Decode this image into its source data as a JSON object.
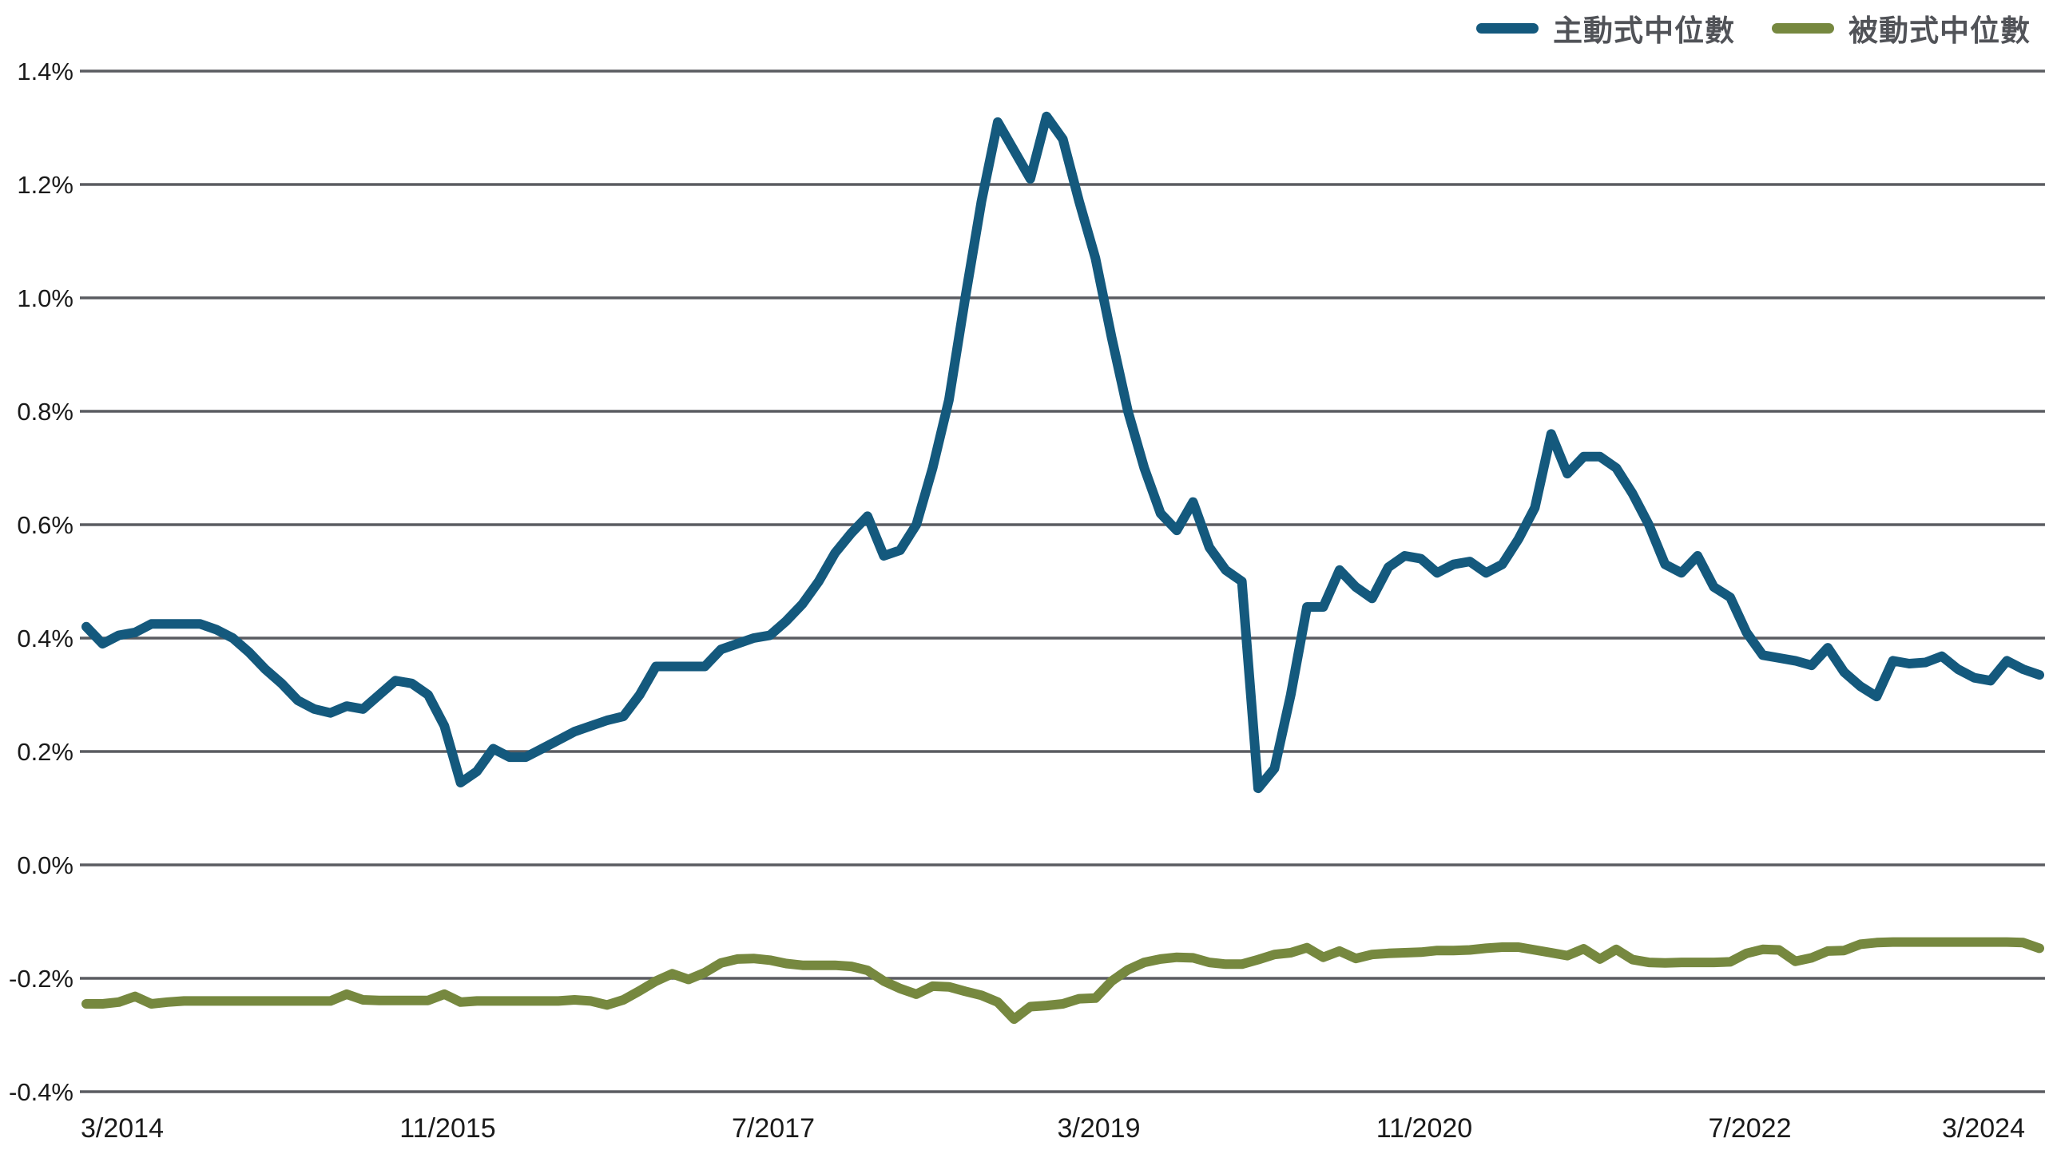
{
  "legend": {
    "active_label": "主動式中位數",
    "passive_label": "被動式中位數"
  },
  "colors": {
    "active": "#14597D",
    "passive": "#76883F",
    "gridline": "#5A5C61",
    "tick_text": "#1A1A1A",
    "legend_text": "#515358",
    "background": "#FFFFFF"
  },
  "chart_data": {
    "type": "line",
    "title": "",
    "xlabel": "",
    "ylabel": "",
    "grid": true,
    "legend_position": "top-right",
    "ylim": [
      -0.4,
      1.4
    ],
    "y_tick_labels": [
      "1.4%",
      "1.2%",
      "1.0%",
      "0.8%",
      "0.6%",
      "0.4%",
      "0.2%",
      "0.0%",
      "-0.2%",
      "-0.4%"
    ],
    "y_tick_values": [
      1.4,
      1.2,
      1.0,
      0.8,
      0.6,
      0.4,
      0.2,
      0.0,
      -0.2,
      -0.4
    ],
    "x_tick_labels": [
      "3/2014",
      "11/2015",
      "7/2017",
      "3/2019",
      "11/2020",
      "7/2022",
      "3/2024"
    ],
    "x_tick_month_indices": [
      0,
      20,
      40,
      60,
      80,
      100,
      120
    ],
    "unit": "percent",
    "x": [
      "3/2014",
      "4/2014",
      "5/2014",
      "6/2014",
      "7/2014",
      "8/2014",
      "9/2014",
      "10/2014",
      "11/2014",
      "12/2014",
      "1/2015",
      "2/2015",
      "3/2015",
      "4/2015",
      "5/2015",
      "6/2015",
      "7/2015",
      "8/2015",
      "9/2015",
      "10/2015",
      "11/2015",
      "12/2015",
      "1/2016",
      "2/2016",
      "3/2016",
      "4/2016",
      "5/2016",
      "6/2016",
      "7/2016",
      "8/2016",
      "9/2016",
      "10/2016",
      "11/2016",
      "12/2016",
      "1/2017",
      "2/2017",
      "3/2017",
      "4/2017",
      "5/2017",
      "6/2017",
      "7/2017",
      "8/2017",
      "9/2017",
      "10/2017",
      "11/2017",
      "12/2017",
      "1/2018",
      "2/2018",
      "3/2018",
      "4/2018",
      "5/2018",
      "6/2018",
      "7/2018",
      "8/2018",
      "9/2018",
      "10/2018",
      "11/2018",
      "12/2018",
      "1/2019",
      "2/2019",
      "3/2019",
      "4/2019",
      "5/2019",
      "6/2019",
      "7/2019",
      "8/2019",
      "9/2019",
      "10/2019",
      "11/2019",
      "12/2019",
      "1/2020",
      "2/2020",
      "3/2020",
      "4/2020",
      "5/2020",
      "6/2020",
      "7/2020",
      "8/2020",
      "9/2020",
      "10/2020",
      "11/2020",
      "12/2020",
      "1/2021",
      "2/2021",
      "3/2021",
      "4/2021",
      "5/2021",
      "6/2021",
      "7/2021",
      "8/2021",
      "9/2021",
      "10/2021",
      "11/2021",
      "12/2021",
      "1/2022",
      "2/2022",
      "3/2022",
      "4/2022",
      "5/2022",
      "6/2022",
      "7/2022",
      "8/2022",
      "9/2022",
      "10/2022",
      "11/2022",
      "12/2022",
      "1/2023",
      "2/2023",
      "3/2023",
      "4/2023",
      "5/2023",
      "6/2023",
      "7/2023",
      "8/2023",
      "9/2023",
      "10/2023",
      "11/2023",
      "12/2023",
      "1/2024",
      "2/2024",
      "3/2024"
    ],
    "series": [
      {
        "name": "主動式中位數",
        "color": "#14597D",
        "values": [
          0.42,
          0.39,
          0.405,
          0.41,
          0.425,
          0.425,
          0.425,
          0.425,
          0.415,
          0.4,
          0.375,
          0.345,
          0.32,
          0.29,
          0.275,
          0.268,
          0.28,
          0.275,
          0.3,
          0.325,
          0.32,
          0.3,
          0.245,
          0.145,
          0.165,
          0.205,
          0.19,
          0.19,
          0.205,
          0.22,
          0.235,
          0.245,
          0.255,
          0.262,
          0.3,
          0.35,
          0.35,
          0.35,
          0.35,
          0.38,
          0.39,
          0.4,
          0.405,
          0.43,
          0.46,
          0.5,
          0.55,
          0.585,
          0.615,
          0.545,
          0.555,
          0.6,
          0.7,
          0.82,
          1.0,
          1.17,
          1.31,
          1.26,
          1.21,
          1.32,
          1.28,
          1.17,
          1.07,
          0.93,
          0.8,
          0.7,
          0.62,
          0.59,
          0.64,
          0.56,
          0.52,
          0.5,
          0.135,
          0.17,
          0.3,
          0.455,
          0.455,
          0.52,
          0.49,
          0.47,
          0.525,
          0.545,
          0.54,
          0.515,
          0.53,
          0.535,
          0.515,
          0.53,
          0.575,
          0.63,
          0.76,
          0.69,
          0.72,
          0.72,
          0.7,
          0.655,
          0.6,
          0.53,
          0.515,
          0.545,
          0.49,
          0.472,
          0.41,
          0.37,
          0.365,
          0.36,
          0.352,
          0.383,
          0.34,
          0.315,
          0.297,
          0.36,
          0.355,
          0.357,
          0.368,
          0.345,
          0.33,
          0.325,
          0.36,
          0.345,
          0.335
        ]
      },
      {
        "name": "被動式中位數",
        "color": "#76883F",
        "values": [
          -0.245,
          -0.245,
          -0.242,
          -0.232,
          -0.245,
          -0.242,
          -0.24,
          -0.24,
          -0.24,
          -0.24,
          -0.24,
          -0.24,
          -0.24,
          -0.24,
          -0.24,
          -0.24,
          -0.228,
          -0.238,
          -0.239,
          -0.239,
          -0.239,
          -0.239,
          -0.228,
          -0.242,
          -0.24,
          -0.24,
          -0.24,
          -0.24,
          -0.24,
          -0.24,
          -0.238,
          -0.24,
          -0.247,
          -0.238,
          -0.222,
          -0.205,
          -0.192,
          -0.202,
          -0.19,
          -0.173,
          -0.166,
          -0.165,
          -0.168,
          -0.174,
          -0.177,
          -0.177,
          -0.177,
          -0.179,
          -0.186,
          -0.205,
          -0.218,
          -0.228,
          -0.214,
          -0.215,
          -0.223,
          -0.23,
          -0.242,
          -0.272,
          -0.25,
          -0.248,
          -0.245,
          -0.236,
          -0.235,
          -0.205,
          -0.185,
          -0.172,
          -0.166,
          -0.163,
          -0.164,
          -0.172,
          -0.175,
          -0.175,
          -0.167,
          -0.158,
          -0.155,
          -0.146,
          -0.163,
          -0.152,
          -0.165,
          -0.158,
          -0.156,
          -0.155,
          -0.154,
          -0.151,
          -0.151,
          -0.15,
          -0.147,
          -0.145,
          -0.145,
          -0.15,
          -0.155,
          -0.16,
          -0.148,
          -0.166,
          -0.149,
          -0.167,
          -0.172,
          -0.173,
          -0.172,
          -0.172,
          -0.172,
          -0.171,
          -0.156,
          -0.149,
          -0.15,
          -0.17,
          -0.164,
          -0.152,
          -0.151,
          -0.14,
          -0.137,
          -0.136,
          -0.136,
          -0.136,
          -0.136,
          -0.136,
          -0.136,
          -0.136,
          -0.136,
          -0.137,
          -0.147
        ]
      }
    ]
  }
}
